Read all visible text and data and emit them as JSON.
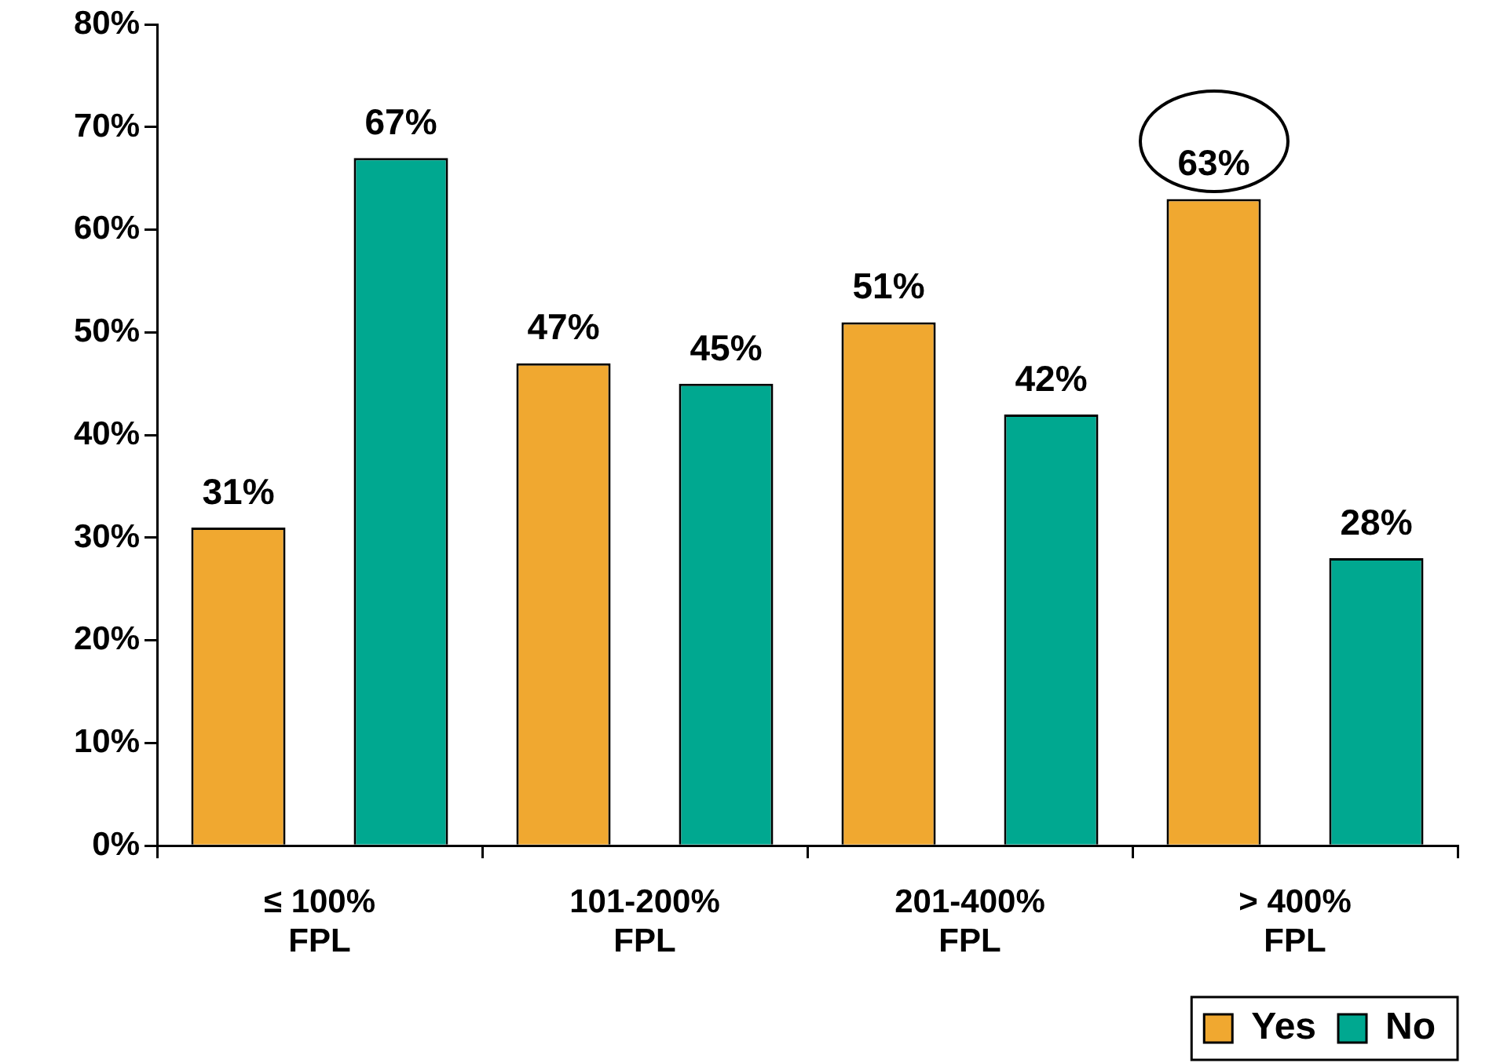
{
  "chart_data": {
    "type": "bar",
    "categories": [
      "≤ 100%\nFPL",
      "101-200%\nFPL",
      "201-400%\nFPL",
      "> 400%\nFPL"
    ],
    "series": [
      {
        "name": "Yes",
        "color": "#f0a830",
        "values": [
          31,
          47,
          51,
          63
        ],
        "value_labels": [
          "31%",
          "47%",
          "51%",
          "63%"
        ]
      },
      {
        "name": "No",
        "color": "#00a890",
        "values": [
          67,
          45,
          42,
          28
        ],
        "value_labels": [
          "67%",
          "45%",
          "42%",
          "28%"
        ]
      }
    ],
    "ylim": [
      0,
      80
    ],
    "yticks": [
      {
        "value": 0,
        "label": "0%"
      },
      {
        "value": 10,
        "label": "10%"
      },
      {
        "value": 20,
        "label": "20%"
      },
      {
        "value": 30,
        "label": "30%"
      },
      {
        "value": 40,
        "label": "40%"
      },
      {
        "value": 50,
        "label": "50%"
      },
      {
        "value": 60,
        "label": "60%"
      },
      {
        "value": 70,
        "label": "70%"
      },
      {
        "value": 80,
        "label": "80%"
      }
    ],
    "grid": false,
    "legend": "bottom right"
  }
}
